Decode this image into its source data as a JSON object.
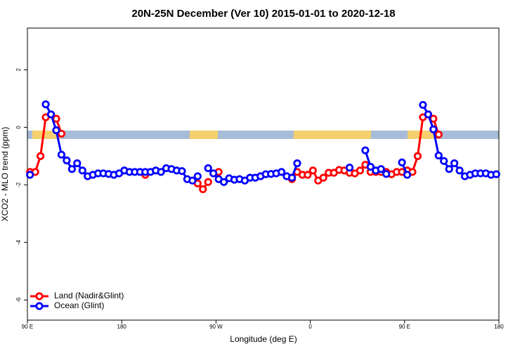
{
  "chart_data": {
    "type": "line",
    "title": "20N-25N December (Ver 10)   2015-01-01 to 2020-12-18",
    "x_label": "Longitude (deg E)",
    "y_label": "XCO2 - MLO trend (ppm)",
    "xlim": [
      90,
      540
    ],
    "ylim": [
      -6.7,
      3.45
    ],
    "xticks": [
      {
        "value": 90,
        "label": "90 E"
      },
      180,
      {
        "value": 270,
        "label": "90 W"
      },
      {
        "value": 360,
        "label": "0"
      },
      {
        "value": 450,
        "label": "90 E"
      },
      {
        "value": 540,
        "label": "180"
      }
    ],
    "yticks": [
      -6,
      -4,
      -2,
      0,
      2
    ],
    "legend": "bottomleft",
    "x": [
      92.5,
      97.5,
      102.5,
      107.5,
      112.5,
      117.5,
      122.5,
      127.5,
      132.5,
      137.5,
      142.5,
      147.5,
      152.5,
      157.5,
      162.5,
      167.5,
      172.5,
      177.5,
      182.5,
      187.5,
      192.5,
      197.5,
      202.5,
      207.5,
      212.5,
      217.5,
      222.5,
      227.5,
      232.5,
      237.5,
      242.5,
      247.5,
      252.5,
      257.5,
      262.5,
      267.5,
      272.5,
      277.5,
      282.5,
      287.5,
      292.5,
      297.5,
      302.5,
      307.5,
      312.5,
      317.5,
      322.5,
      327.5,
      332.5,
      337.5,
      342.5,
      347.5,
      352.5,
      357.5,
      362.5,
      367.5,
      372.5,
      377.5,
      382.5,
      387.5,
      392.5,
      397.5,
      402.5,
      407.5,
      412.5,
      417.5,
      422.5,
      427.5,
      432.5,
      437.5,
      442.5,
      447.5,
      452.5,
      457.5,
      462.5,
      467.5,
      472.5,
      477.5,
      482.5,
      487.5,
      492.5,
      497.5,
      502.5,
      507.5,
      512.5,
      517.5,
      522.5,
      527.5,
      532.5,
      537.5
    ],
    "series": [
      {
        "name": "Land (Nadir&Glint)",
        "color": "#ff0000",
        "values": [
          -1.55,
          -1.55,
          -1.0,
          0.35,
          0.45,
          0.3,
          -0.22,
          null,
          null,
          null,
          null,
          null,
          null,
          null,
          null,
          null,
          null,
          null,
          null,
          null,
          null,
          null,
          -1.65,
          null,
          null,
          null,
          null,
          null,
          null,
          null,
          null,
          null,
          -1.95,
          -2.15,
          -1.9,
          null,
          -1.55,
          null,
          null,
          null,
          null,
          null,
          null,
          null,
          null,
          null,
          null,
          null,
          null,
          null,
          -1.8,
          -1.55,
          -1.65,
          -1.65,
          -1.5,
          -1.85,
          -1.75,
          -1.58,
          -1.58,
          -1.48,
          -1.5,
          -1.58,
          -1.6,
          -1.5,
          -1.3,
          -1.55,
          -1.55,
          -1.55,
          -1.55,
          -1.63,
          -1.55,
          -1.55,
          -1.5,
          -1.55,
          -1.0,
          0.35,
          0.45,
          0.3,
          -0.25,
          null,
          null,
          null,
          null,
          null,
          null,
          null,
          null,
          null,
          null,
          null
        ]
      },
      {
        "name": "Ocean (Glint)",
        "color": "#0000ff",
        "values": [
          -1.65,
          null,
          null,
          0.8,
          0.45,
          -0.1,
          -0.95,
          -1.15,
          -1.45,
          -1.25,
          -1.5,
          -1.7,
          -1.65,
          -1.6,
          -1.6,
          -1.62,
          -1.65,
          -1.6,
          -1.5,
          -1.55,
          -1.55,
          -1.55,
          -1.55,
          -1.55,
          -1.5,
          -1.55,
          -1.42,
          -1.45,
          -1.5,
          -1.52,
          -1.8,
          -1.85,
          -1.7,
          null,
          -1.42,
          -1.6,
          -1.8,
          -1.9,
          -1.77,
          -1.82,
          -1.8,
          -1.85,
          -1.75,
          -1.75,
          -1.7,
          -1.63,
          -1.62,
          -1.6,
          -1.55,
          -1.7,
          -1.75,
          -1.25,
          null,
          null,
          null,
          null,
          null,
          null,
          null,
          null,
          null,
          -1.4,
          null,
          null,
          -0.8,
          -1.37,
          -1.5,
          -1.45,
          -1.62,
          null,
          null,
          -1.22,
          -1.65,
          null,
          null,
          0.78,
          0.45,
          -0.07,
          -0.98,
          -1.17,
          -1.45,
          -1.25,
          -1.5,
          -1.7,
          -1.65,
          -1.6,
          -1.6,
          -1.6,
          -1.65,
          -1.63
        ]
      }
    ]
  }
}
